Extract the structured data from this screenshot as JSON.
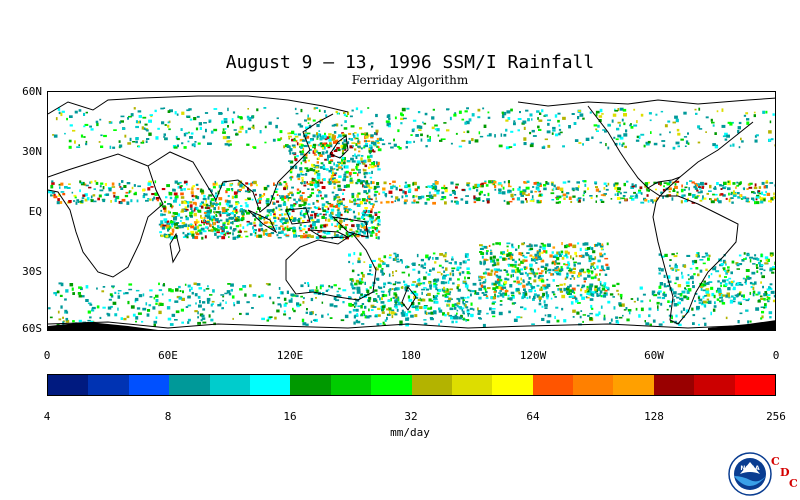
{
  "title": "August 9 – 13, 1996 SSM/I Rainfall",
  "subtitle": "Ferriday Algorithm",
  "lat_labels": [
    "60N",
    "30N",
    "EQ",
    "30S",
    "60S"
  ],
  "lon_labels": [
    "0",
    "60E",
    "120E",
    "180",
    "120W",
    "60W",
    "0"
  ],
  "colorbar": {
    "colors": [
      "#001a80",
      "#0033b3",
      "#0050ff",
      "#009999",
      "#00cccc",
      "#00ffff",
      "#009900",
      "#00cc00",
      "#00ff00",
      "#b3b300",
      "#dddd00",
      "#ffff00",
      "#ff5500",
      "#ff8000",
      "#ffa000",
      "#990000",
      "#cc0000",
      "#ff0000"
    ],
    "tick_labels": [
      "4",
      "8",
      "16",
      "32",
      "64",
      "128",
      "256"
    ],
    "units": "mm/day"
  },
  "logo": {
    "noaa_text": "NOAA",
    "cdc_letters": [
      "C",
      "D",
      "C"
    ]
  }
}
